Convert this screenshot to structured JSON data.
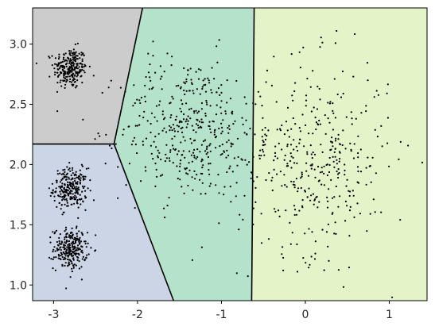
{
  "chart_data": {
    "type": "scatter",
    "title": "",
    "xlabel": "",
    "ylabel": "",
    "xlim": [
      -3.25,
      1.45
    ],
    "ylim": [
      0.87,
      3.3
    ],
    "xticks": [
      {
        "value": -3,
        "label": "-3"
      },
      {
        "value": -2,
        "label": "-2"
      },
      {
        "value": -1,
        "label": "-1"
      },
      {
        "value": 0,
        "label": "0"
      },
      {
        "value": 1,
        "label": "1"
      }
    ],
    "yticks": [
      {
        "value": 1.0,
        "label": "1.0"
      },
      {
        "value": 1.5,
        "label": "1.5"
      },
      {
        "value": 2.0,
        "label": "2.0"
      },
      {
        "value": 2.5,
        "label": "2.5"
      },
      {
        "value": 3.0,
        "label": "3.0"
      }
    ],
    "regions": [
      {
        "name": "gray",
        "color": "#cccccc",
        "polygon": [
          [
            -3.25,
            3.3
          ],
          [
            -1.94,
            3.3
          ],
          [
            -2.28,
            2.17
          ],
          [
            -3.25,
            2.17
          ]
        ]
      },
      {
        "name": "blue",
        "color": "#cbd5e6",
        "polygon": [
          [
            -3.25,
            2.17
          ],
          [
            -2.28,
            2.17
          ],
          [
            -1.57,
            0.87
          ],
          [
            -3.25,
            0.87
          ]
        ]
      },
      {
        "name": "green",
        "color": "#b4e2cb",
        "polygon": [
          [
            -1.94,
            3.3
          ],
          [
            -0.61,
            3.3
          ],
          [
            -0.64,
            0.87
          ],
          [
            -1.57,
            0.87
          ],
          [
            -2.28,
            2.17
          ]
        ]
      },
      {
        "name": "yellow",
        "color": "#e4f3c8",
        "polygon": [
          [
            -0.61,
            3.3
          ],
          [
            1.45,
            3.3
          ],
          [
            1.45,
            0.87
          ],
          [
            -0.64,
            0.87
          ]
        ]
      }
    ],
    "boundaries": [
      [
        [
          -2.28,
          2.17
        ],
        [
          -1.94,
          3.3
        ]
      ],
      [
        [
          -3.25,
          2.17
        ],
        [
          -2.28,
          2.17
        ]
      ],
      [
        [
          -2.28,
          2.17
        ],
        [
          -1.57,
          0.87
        ]
      ],
      [
        [
          -0.61,
          3.3
        ],
        [
          -0.64,
          0.87
        ]
      ]
    ],
    "clusters": [
      {
        "center": [
          -2.8,
          2.8
        ],
        "spread": [
          0.1,
          0.085
        ],
        "count": 250,
        "color": "#000000"
      },
      {
        "center": [
          -2.8,
          1.8
        ],
        "spread": [
          0.1,
          0.085
        ],
        "count": 250,
        "color": "#000000"
      },
      {
        "center": [
          -2.8,
          1.3
        ],
        "spread": [
          0.1,
          0.085
        ],
        "count": 250,
        "color": "#000000"
      },
      {
        "center": [
          -1.4,
          2.3
        ],
        "spread": [
          0.4,
          0.3
        ],
        "count": 400,
        "color": "#000000"
      },
      {
        "center": [
          0.1,
          2.05
        ],
        "spread": [
          0.45,
          0.4
        ],
        "count": 400,
        "color": "#000000"
      }
    ]
  }
}
